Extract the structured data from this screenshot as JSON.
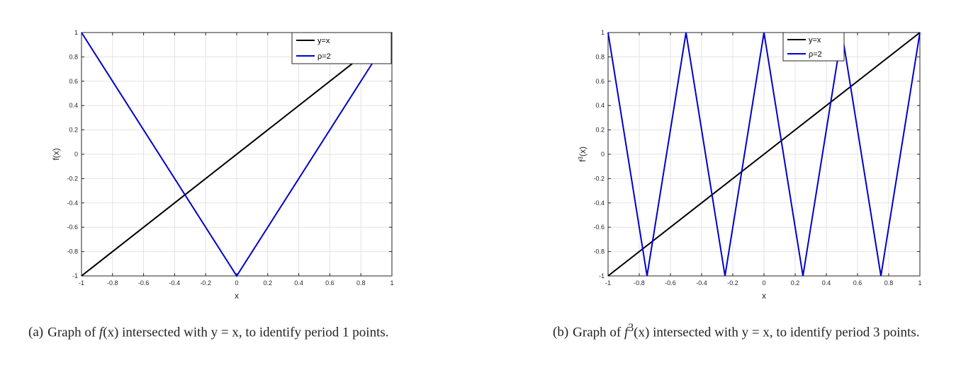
{
  "chart_data": [
    {
      "type": "line",
      "panel": "a",
      "xlabel": "x",
      "ylabel": "f(x)",
      "xlim": [
        -1,
        1
      ],
      "ylim": [
        -1,
        1
      ],
      "xticks": [
        "-1",
        "-0.8",
        "-0.6",
        "-0.4",
        "-0.2",
        "0",
        "0.2",
        "0.4",
        "0.6",
        "0.8",
        "1"
      ],
      "yticks": [
        "-1",
        "-0.8",
        "-0.6",
        "-0.4",
        "-0.2",
        "0",
        "0.2",
        "0.4",
        "0.6",
        "0.8",
        "1"
      ],
      "grid": true,
      "legend_position": "top-right",
      "series": [
        {
          "name": "y=x",
          "color": "#000000",
          "x": [
            -1,
            1
          ],
          "y": [
            -1,
            1
          ]
        },
        {
          "name": "ρ=2",
          "color": "#0000cc",
          "x": [
            -1,
            0,
            1
          ],
          "y": [
            1,
            -1,
            1
          ]
        }
      ]
    },
    {
      "type": "line",
      "panel": "b",
      "xlabel": "x",
      "ylabel": "f3(x)",
      "xlim": [
        -1,
        1
      ],
      "ylim": [
        -1,
        1
      ],
      "xticks": [
        "-1",
        "-0.8",
        "-0.6",
        "-0.4",
        "-0.2",
        "0",
        "0.2",
        "0.4",
        "0.6",
        "0.8",
        "1"
      ],
      "yticks": [
        "-1",
        "-0.8",
        "-0.6",
        "-0.4",
        "-0.2",
        "0",
        "0.2",
        "0.4",
        "0.6",
        "0.8",
        "1"
      ],
      "grid": true,
      "legend_position": "top-center",
      "series": [
        {
          "name": "y=x",
          "color": "#000000",
          "x": [
            -1,
            1
          ],
          "y": [
            -1,
            1
          ]
        },
        {
          "name": "ρ=2",
          "color": "#0000cc",
          "x": [
            -1,
            -0.75,
            -0.5,
            -0.25,
            0,
            0.25,
            0.5,
            0.75,
            1
          ],
          "y": [
            1,
            -1,
            1,
            -1,
            1,
            -1,
            1,
            -1,
            1
          ]
        }
      ]
    }
  ],
  "captions": {
    "a": {
      "label": "(a)",
      "pre": "Graph of ",
      "fn": "f",
      "fn_sup": "",
      "post": "(x) intersected with y = x, to identify period 1 points."
    },
    "b": {
      "label": "(b)",
      "pre": "Graph of ",
      "fn": "f",
      "fn_sup": "3",
      "post": "(x) intersected with y = x, to identify period 3 points."
    }
  }
}
